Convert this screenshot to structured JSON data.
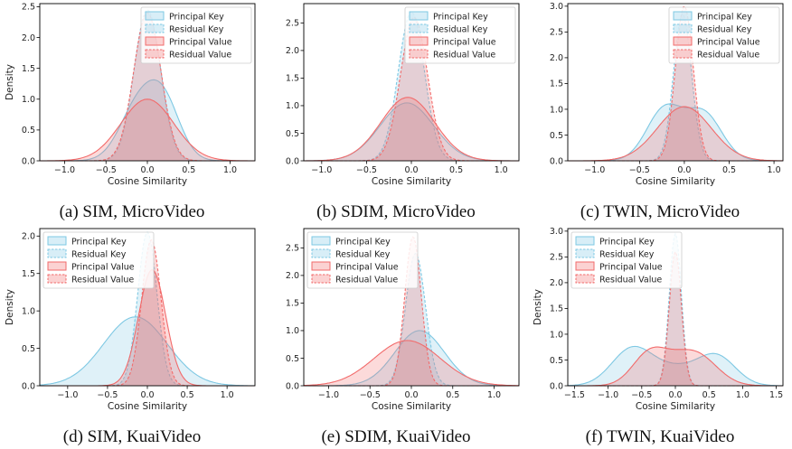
{
  "colors": {
    "blue": "#7ec8e3",
    "red": "#f26b6b"
  },
  "legend_labels": [
    "Principal Key",
    "Residual Key",
    "Principal Value",
    "Residual Value"
  ],
  "chart_data": [
    {
      "type": "area",
      "caption": "(a) SIM, MicroVideo",
      "xlabel": "Cosine Similarity",
      "ylabel": "Density",
      "xlim": [
        -1.3,
        1.3
      ],
      "ylim": [
        0,
        2.55
      ],
      "xticks": [
        "-1.0",
        "-0.5",
        "0.0",
        "0.5",
        "1.0"
      ],
      "yticks": [
        "0.0",
        "0.5",
        "1.0",
        "1.5",
        "2.0",
        "2.5"
      ],
      "legend": "top-right",
      "series": [
        {
          "name": "Principal Key",
          "components": [
            {
              "mu": -0.12,
              "sigma": 0.22,
              "peak": 0.85
            },
            {
              "mu": 0.2,
              "sigma": 0.2,
              "peak": 0.9
            }
          ]
        },
        {
          "name": "Residual Key",
          "components": [
            {
              "mu": 0.0,
              "sigma": 0.16,
              "peak": 2.45
            }
          ]
        },
        {
          "name": "Principal Value",
          "components": [
            {
              "mu": 0.0,
              "sigma": 0.32,
              "peak": 1.0
            }
          ]
        },
        {
          "name": "Residual Value",
          "components": [
            {
              "mu": 0.0,
              "sigma": 0.165,
              "peak": 2.4
            }
          ]
        }
      ]
    },
    {
      "type": "area",
      "caption": "(b) SDIM, MicroVideo",
      "xlabel": "Cosine Similarity",
      "ylabel": "",
      "xlim": [
        -1.2,
        1.2
      ],
      "ylim": [
        0,
        2.85
      ],
      "xticks": [
        "-1.0",
        "-0.5",
        "0.0",
        "0.5",
        "1.0"
      ],
      "yticks": [
        "0.0",
        "0.5",
        "1.0",
        "1.5",
        "2.0",
        "2.5"
      ],
      "legend": "top-right",
      "series": [
        {
          "name": "Principal Key",
          "components": [
            {
              "mu": -0.05,
              "sigma": 0.3,
              "peak": 1.05
            }
          ]
        },
        {
          "name": "Residual Key",
          "components": [
            {
              "mu": 0.0,
              "sigma": 0.145,
              "peak": 2.7
            }
          ]
        },
        {
          "name": "Principal Value",
          "components": [
            {
              "mu": -0.04,
              "sigma": 0.3,
              "peak": 1.15
            }
          ]
        },
        {
          "name": "Residual Value",
          "components": [
            {
              "mu": 0.03,
              "sigma": 0.15,
              "peak": 2.6
            }
          ]
        }
      ]
    },
    {
      "type": "area",
      "caption": "(c) TWIN, MicroVideo",
      "xlabel": "Cosine Similarity",
      "ylabel": "",
      "xlim": [
        -1.3,
        1.1
      ],
      "ylim": [
        0,
        3.05
      ],
      "xticks": [
        "-1.0",
        "-0.5",
        "0.0",
        "0.5",
        "1.0"
      ],
      "yticks": [
        "0.0",
        "0.5",
        "1.0",
        "1.5",
        "2.0",
        "2.5",
        "3.0"
      ],
      "legend": "top-right",
      "series": [
        {
          "name": "Principal Key",
          "components": [
            {
              "mu": -0.22,
              "sigma": 0.2,
              "peak": 1.0
            },
            {
              "mu": 0.22,
              "sigma": 0.2,
              "peak": 0.9
            }
          ]
        },
        {
          "name": "Residual Key",
          "components": [
            {
              "mu": -0.02,
              "sigma": 0.1,
              "peak": 2.85
            }
          ]
        },
        {
          "name": "Principal Value",
          "components": [
            {
              "mu": 0.0,
              "sigma": 0.3,
              "peak": 1.05
            }
          ]
        },
        {
          "name": "Residual Value",
          "components": [
            {
              "mu": 0.0,
              "sigma": 0.1,
              "peak": 3.0
            }
          ]
        }
      ]
    },
    {
      "type": "area",
      "caption": "(d) SIM, KuaiVideo",
      "xlabel": "Cosine Similarity",
      "ylabel": "Density",
      "xlim": [
        -1.35,
        1.35
      ],
      "ylim": [
        0,
        2.1
      ],
      "xticks": [
        "-1.0",
        "-0.5",
        "0.0",
        "0.5",
        "1.0"
      ],
      "yticks": [
        "0.0",
        "0.5",
        "1.0",
        "1.5",
        "2.0"
      ],
      "legend": "top-left",
      "series": [
        {
          "name": "Principal Key",
          "components": [
            {
              "mu": -0.15,
              "sigma": 0.4,
              "peak": 0.92
            }
          ]
        },
        {
          "name": "Residual Key",
          "components": [
            {
              "mu": 0.0,
              "sigma": 0.12,
              "peak": 2.05
            }
          ]
        },
        {
          "name": "Principal Value",
          "components": [
            {
              "mu": 0.06,
              "sigma": 0.17,
              "peak": 1.55
            }
          ]
        },
        {
          "name": "Residual Value",
          "components": [
            {
              "mu": 0.05,
              "sigma": 0.12,
              "peak": 1.95
            }
          ]
        }
      ]
    },
    {
      "type": "area",
      "caption": "(e) SDIM, KuaiVideo",
      "xlabel": "Cosine Similarity",
      "ylabel": "",
      "xlim": [
        -1.3,
        1.3
      ],
      "ylim": [
        0,
        2.85
      ],
      "xticks": [
        "-1.0",
        "-0.5",
        "0.0",
        "0.5",
        "1.0"
      ],
      "yticks": [
        "0.0",
        "0.5",
        "1.0",
        "1.5",
        "2.0",
        "2.5"
      ],
      "legend": "top-left",
      "series": [
        {
          "name": "Principal Key",
          "components": [
            {
              "mu": 0.1,
              "sigma": 0.3,
              "peak": 1.0
            }
          ]
        },
        {
          "name": "Residual Key",
          "components": [
            {
              "mu": 0.05,
              "sigma": 0.12,
              "peak": 2.4
            }
          ]
        },
        {
          "name": "Principal Value",
          "components": [
            {
              "mu": -0.05,
              "sigma": 0.4,
              "peak": 0.82
            }
          ]
        },
        {
          "name": "Residual Value",
          "components": [
            {
              "mu": 0.02,
              "sigma": 0.1,
              "peak": 2.7
            }
          ]
        }
      ]
    },
    {
      "type": "area",
      "caption": "(f) TWIN, KuaiVideo",
      "xlabel": "Cosine Similarity",
      "ylabel": "Density",
      "xlim": [
        -1.6,
        1.6
      ],
      "ylim": [
        0,
        3.05
      ],
      "xticks": [
        "-1.5",
        "-1.0",
        "-0.5",
        "0.0",
        "0.5",
        "1.0",
        "1.5"
      ],
      "yticks": [
        "0.0",
        "0.5",
        "1.0",
        "1.5",
        "2.0",
        "2.5",
        "3.0"
      ],
      "legend": "top-left",
      "series": [
        {
          "name": "Principal Key",
          "components": [
            {
              "mu": -0.65,
              "sigma": 0.3,
              "peak": 0.7
            },
            {
              "mu": 0.62,
              "sigma": 0.28,
              "peak": 0.55
            },
            {
              "mu": 0.0,
              "sigma": 0.35,
              "peak": 0.32
            }
          ]
        },
        {
          "name": "Residual Key",
          "components": [
            {
              "mu": 0.0,
              "sigma": 0.09,
              "peak": 2.95
            }
          ]
        },
        {
          "name": "Principal Value",
          "components": [
            {
              "mu": -0.4,
              "sigma": 0.25,
              "peak": 0.55
            },
            {
              "mu": 0.35,
              "sigma": 0.3,
              "peak": 0.5
            },
            {
              "mu": -0.02,
              "sigma": 0.3,
              "peak": 0.3
            }
          ]
        },
        {
          "name": "Residual Value",
          "components": [
            {
              "mu": 0.0,
              "sigma": 0.09,
              "peak": 2.6
            }
          ]
        }
      ]
    }
  ]
}
